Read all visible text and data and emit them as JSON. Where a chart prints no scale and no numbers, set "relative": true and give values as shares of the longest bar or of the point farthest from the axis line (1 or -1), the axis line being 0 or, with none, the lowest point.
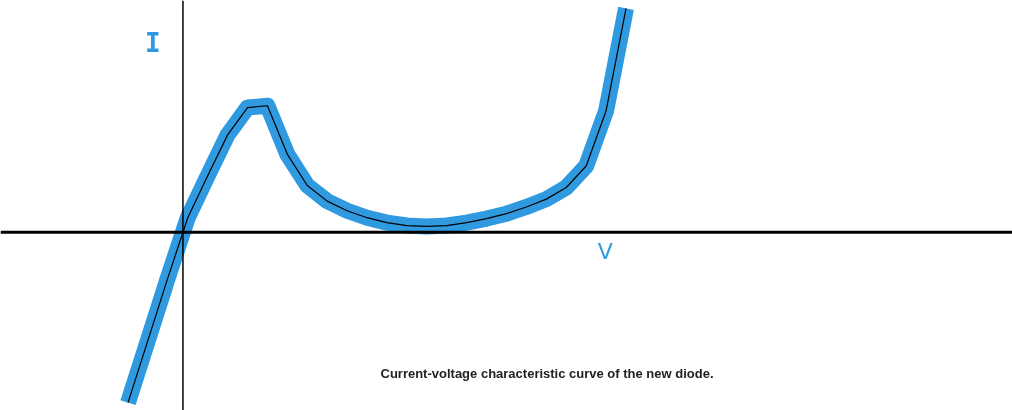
{
  "chart_data": {
    "type": "line",
    "relative": true,
    "xlabel": "V",
    "ylabel": "I",
    "grid": false,
    "marker": "none",
    "line_style": "solid",
    "categories": [
      null,
      null,
      null,
      null,
      null,
      null,
      null,
      null,
      null,
      null,
      null,
      null,
      null,
      null,
      null,
      null,
      null,
      null,
      null,
      null,
      null,
      null,
      null,
      null,
      null,
      null,
      null,
      null,
      null,
      null,
      null,
      null,
      null,
      null,
      null,
      null,
      null,
      null,
      null,
      null,
      null,
      null,
      null,
      null,
      null,
      null,
      null,
      null,
      null,
      null,
      null
    ],
    "series": [
      {
        "color": "#2f9ae0",
        "values": [
          null,
          null,
          null,
          null,
          null,
          null,
          -0.761,
          -0.483,
          -0.204,
          0.065,
          0.252,
          0.435,
          0.557,
          0.565,
          0.348,
          0.209,
          0.139,
          0.096,
          0.065,
          0.043,
          0.03,
          0.026,
          0.03,
          0.043,
          0.061,
          0.083,
          0.113,
          0.148,
          0.2,
          0.296,
          0.543,
          1.0,
          null,
          null,
          null,
          null,
          null,
          null,
          null,
          null,
          null,
          null,
          null,
          null,
          null,
          null,
          null,
          null,
          null,
          null,
          null
        ]
      }
    ],
    "annotations": [
      "Current-voltage characteristic curve of the new diode."
    ]
  }
}
